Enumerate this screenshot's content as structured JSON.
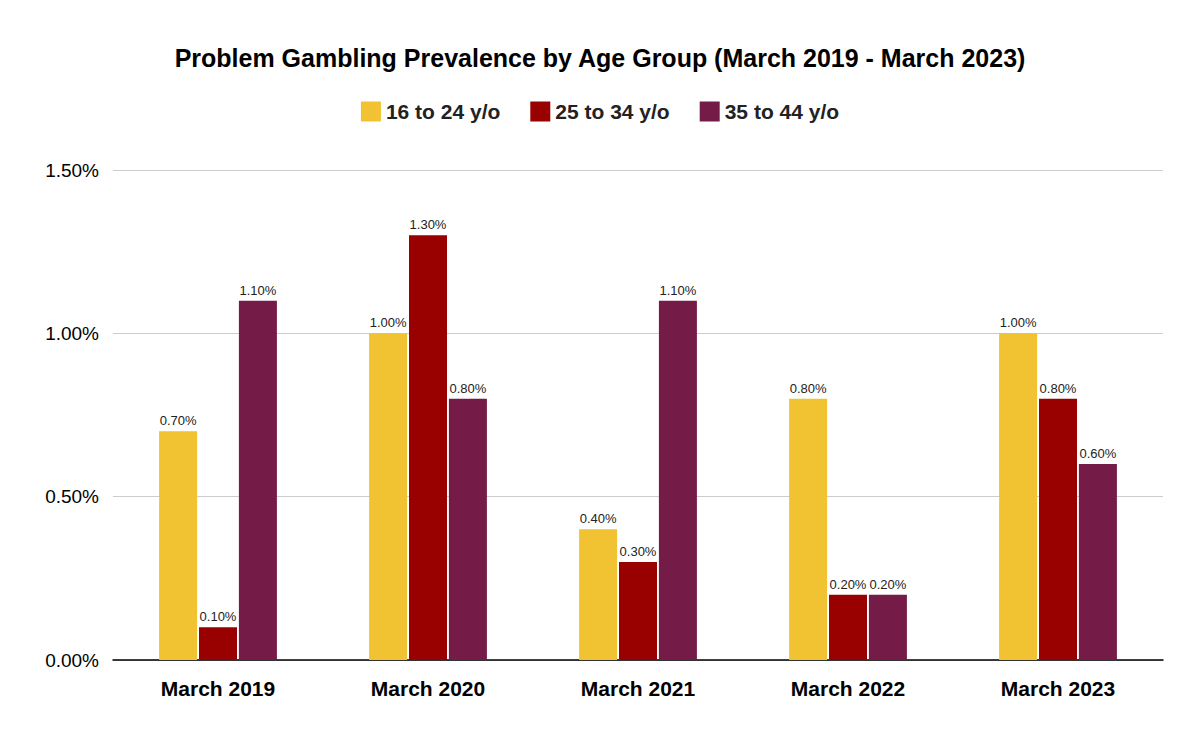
{
  "chart_data": {
    "type": "bar",
    "title": "Problem Gambling Prevalence by Age Group (March 2019 - March 2023)",
    "categories": [
      "March 2019",
      "March 2020",
      "March 2021",
      "March 2022",
      "March 2023"
    ],
    "series": [
      {
        "name": "16 to 24 y/o",
        "color": "#f1c232",
        "values": [
          0.7,
          1.0,
          0.4,
          0.8,
          1.0
        ],
        "value_labels": [
          "0.70%",
          "1.00%",
          "0.40%",
          "0.80%",
          "1.00%"
        ]
      },
      {
        "name": "25 to 34 y/o",
        "color": "#990000",
        "values": [
          0.1,
          1.3,
          0.3,
          0.2,
          0.8
        ],
        "value_labels": [
          "0.10%",
          "1.30%",
          "0.30%",
          "0.20%",
          "0.80%"
        ]
      },
      {
        "name": "35 to 44 y/o",
        "color": "#741b47",
        "values": [
          1.1,
          0.8,
          1.1,
          0.2,
          0.6
        ],
        "value_labels": [
          "1.10%",
          "0.80%",
          "1.10%",
          "0.20%",
          "0.60%"
        ]
      }
    ],
    "ylim": [
      0,
      1.5
    ],
    "yticks": [
      {
        "value": 0,
        "label": "0.00%"
      },
      {
        "value": 0.5,
        "label": "0.50%"
      },
      {
        "value": 1.0,
        "label": "1.00%"
      },
      {
        "value": 1.5,
        "label": "1.50%"
      }
    ],
    "grid": true,
    "legend": "top",
    "data_labels": true
  }
}
